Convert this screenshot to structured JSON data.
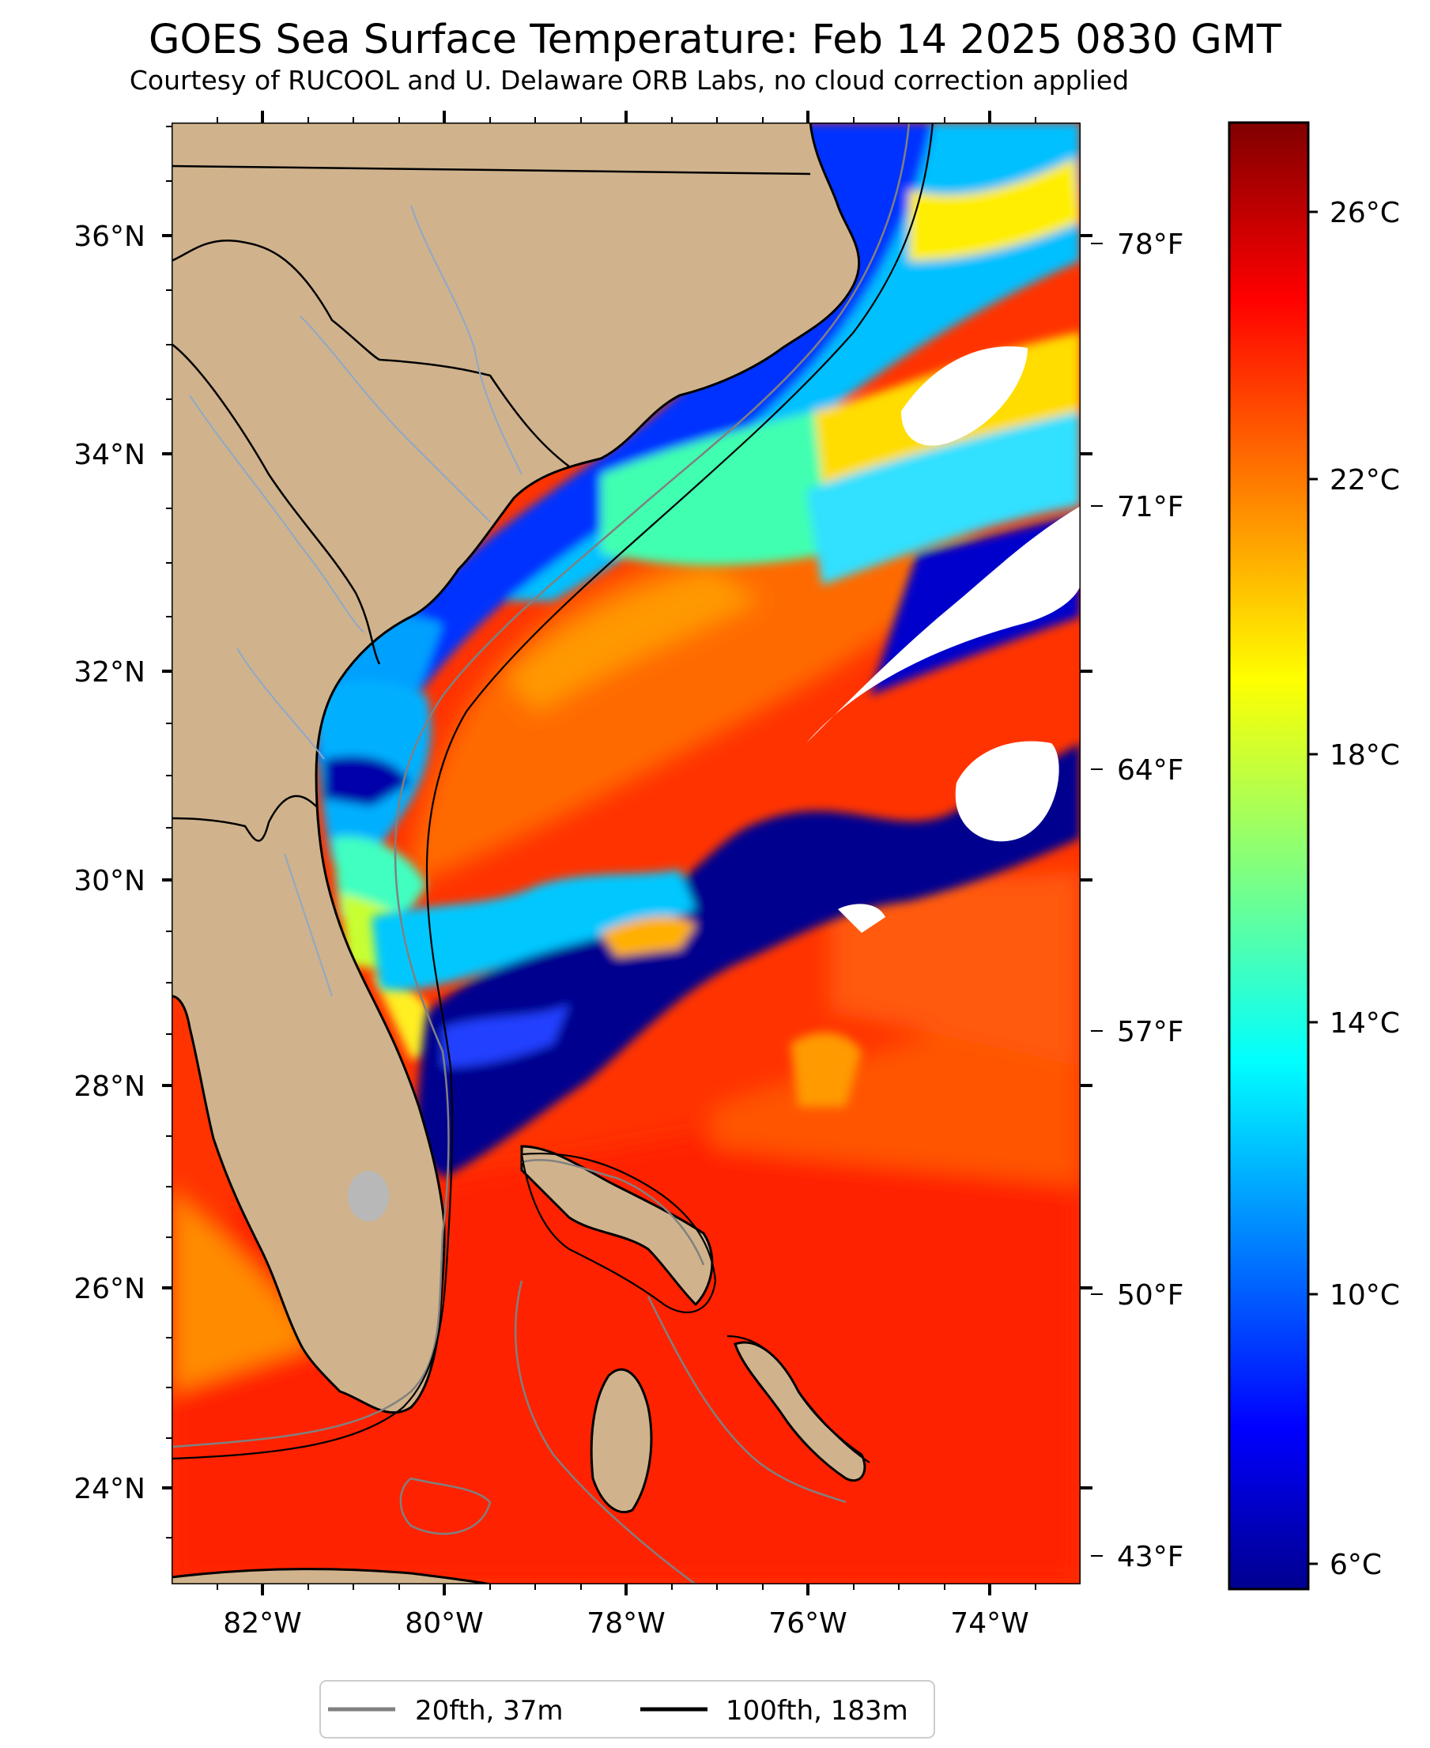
{
  "title": "GOES Sea Surface Temperature: Feb 14 2025 0830 GMT",
  "subtitle": "Courtesy of RUCOOL and U. Delaware ORB Labs, no cloud correction applied",
  "map": {
    "lon_range": [
      -83,
      -73
    ],
    "lat_range": [
      23.1,
      37.0
    ],
    "lat_ticks": [
      "36°N",
      "34°N",
      "32°N",
      "30°N",
      "28°N",
      "26°N",
      "24°N"
    ],
    "lon_ticks": [
      "82°W",
      "80°W",
      "78°W",
      "76°W",
      "74°W"
    ],
    "fahrenheit_ticks": [
      "78°F",
      "71°F",
      "64°F",
      "57°F",
      "50°F",
      "43°F"
    ],
    "land_color": "#d0b38c",
    "cloud_color": "#ffffff"
  },
  "colorbar": {
    "unit": "°C",
    "range": [
      5.5,
      27.5
    ],
    "colormap": "jet",
    "tick_labels": [
      "26°C",
      "22°C",
      "18°C",
      "14°C",
      "10°C",
      "6°C"
    ]
  },
  "legend": {
    "items": [
      {
        "label": "20fth, 37m",
        "color": "#808080"
      },
      {
        "label": "100fth, 183m",
        "color": "#000000"
      }
    ]
  }
}
